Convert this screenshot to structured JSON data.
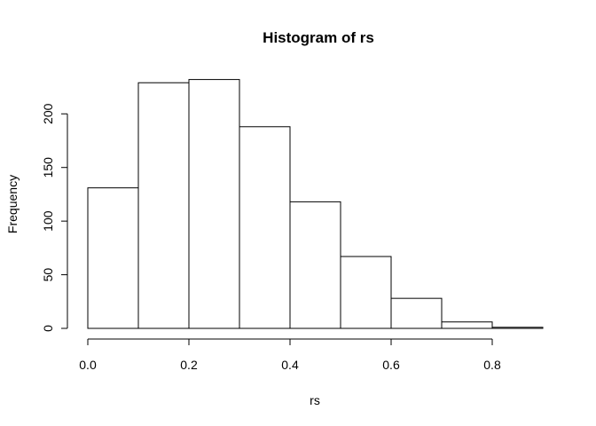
{
  "chart_data": {
    "type": "bar",
    "title": "Histogram of rs",
    "xlabel": "rs",
    "ylabel": "Frequency",
    "bins": [
      {
        "start": 0.0,
        "end": 0.1,
        "count": 131
      },
      {
        "start": 0.1,
        "end": 0.2,
        "count": 229
      },
      {
        "start": 0.2,
        "end": 0.3,
        "count": 232
      },
      {
        "start": 0.3,
        "end": 0.4,
        "count": 188
      },
      {
        "start": 0.4,
        "end": 0.5,
        "count": 118
      },
      {
        "start": 0.5,
        "end": 0.6,
        "count": 67
      },
      {
        "start": 0.6,
        "end": 0.7,
        "count": 28
      },
      {
        "start": 0.7,
        "end": 0.8,
        "count": 6
      },
      {
        "start": 0.8,
        "end": 0.9,
        "count": 1
      }
    ],
    "xlim": [
      0.0,
      0.9
    ],
    "ylim": [
      0,
      232
    ],
    "xticks": [
      0.0,
      0.2,
      0.4,
      0.6,
      0.8
    ],
    "xtick_labels": [
      "0.0",
      "0.2",
      "0.4",
      "0.6",
      "0.8"
    ],
    "yticks": [
      0,
      50,
      100,
      150,
      200
    ],
    "ytick_labels": [
      "0",
      "50",
      "100",
      "150",
      "200"
    ],
    "grid": false,
    "legend": "none"
  }
}
